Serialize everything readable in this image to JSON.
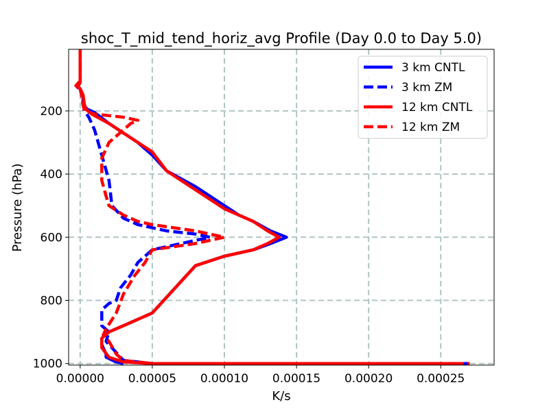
{
  "chart_data": {
    "type": "line",
    "title": "shoc_T_mid_tend_horiz_avg Profile (Day 0.0 to Day 5.0)",
    "xlabel": "K/s",
    "ylabel": "Pressure (hPa)",
    "xlim": [
      -8e-06,
      0.000287
    ],
    "ylim": [
      1005,
      5
    ],
    "y_inverted": true,
    "grid": true,
    "legend_position": "upper right",
    "x_ticks": [
      0,
      5e-05,
      0.0001,
      0.00015,
      0.0002,
      0.00025
    ],
    "x_tick_labels": [
      "0.00000",
      "0.00005",
      "0.00010",
      "0.00015",
      "0.00020",
      "0.00025"
    ],
    "y_ticks": [
      200,
      400,
      600,
      800,
      1000
    ],
    "y_tick_labels": [
      "200",
      "400",
      "600",
      "800",
      "1000"
    ],
    "series": [
      {
        "name": "3 km CNTL",
        "color": "#0000ff",
        "style": "solid",
        "x": [
          0.0,
          0.0,
          0.0,
          -2e-06,
          0.0,
          1e-06,
          2e-06,
          2e-06,
          5e-06,
          1e-05,
          2e-05,
          4e-05,
          5e-05,
          6e-05,
          8e-05,
          0.0001,
          0.00011,
          0.00012,
          0.000124,
          0.000132,
          0.000143,
          0.000132,
          0.00012,
          0.0001,
          8e-05,
          7e-05,
          6e-05,
          5e-05,
          3e-05,
          2e-05,
          1.5e-05,
          1.5e-05,
          1.8e-05,
          1.8e-05,
          2.5e-05,
          3e-05
        ],
        "y": [
          5,
          60,
          110,
          125,
          130,
          140,
          150,
          180,
          195,
          205,
          240,
          300,
          340,
          390,
          440,
          500,
          530,
          550,
          560,
          580,
          600,
          620,
          640,
          660,
          690,
          740,
          790,
          840,
          880,
          900,
          920,
          940,
          970,
          980,
          995,
          1000
        ]
      },
      {
        "name": "3 km ZM",
        "color": "#0000ff",
        "style": "dashed",
        "x": [
          0.0,
          0.0,
          0.0,
          -2e-06,
          0.0,
          1e-06,
          2e-06,
          3e-06,
          6e-06,
          1e-05,
          2e-05,
          2.2e-05,
          3e-05,
          4e-05,
          6e-05,
          8e-05,
          9e-05,
          8e-05,
          5e-05,
          4e-05,
          3.5e-05,
          2.8e-05,
          2.5e-05,
          2e-05,
          1.5e-05,
          1.5e-05,
          2e-05,
          1.8e-05,
          3e-05,
          5e-05,
          0.0001,
          0.00015,
          0.00027
        ],
        "y": [
          5,
          60,
          110,
          125,
          130,
          150,
          180,
          200,
          220,
          260,
          420,
          500,
          540,
          560,
          580,
          590,
          600,
          610,
          640,
          680,
          720,
          760,
          800,
          810,
          830,
          880,
          900,
          930,
          990,
          1000,
          1000,
          1000,
          1000
        ]
      },
      {
        "name": "12 km CNTL",
        "color": "#ff0000",
        "style": "solid",
        "x": [
          0.0,
          0.0,
          0.0,
          -3e-06,
          0.0,
          2e-06,
          3e-06,
          4e-06,
          8e-06,
          2e-05,
          3e-05,
          4e-05,
          5e-05,
          6e-05,
          8e-05,
          0.0001,
          0.00012,
          0.00013,
          0.000138,
          0.00013,
          0.00012,
          0.0001,
          8e-05,
          7e-05,
          6e-05,
          5e-05,
          3e-05,
          2e-05,
          1.5e-05,
          1.5e-05,
          2e-05,
          3e-05,
          5e-05,
          0.0001,
          0.00015,
          0.000265
        ],
        "y": [
          5,
          60,
          105,
          120,
          130,
          150,
          180,
          195,
          210,
          240,
          270,
          300,
          330,
          390,
          450,
          510,
          550,
          580,
          600,
          620,
          640,
          660,
          690,
          740,
          790,
          840,
          880,
          900,
          920,
          950,
          980,
          995,
          1000,
          1000,
          1000,
          1000
        ]
      },
      {
        "name": "12 km ZM",
        "color": "#ff0000",
        "style": "dashed",
        "x": [
          0.0,
          0.0,
          0.0,
          -2e-06,
          0.0,
          1e-06,
          2e-06,
          3e-06,
          1e-05,
          2e-05,
          3e-05,
          4e-05,
          3.5e-05,
          3e-05,
          2e-05,
          1.5e-05,
          1.5e-05,
          1.8e-05,
          2e-05,
          3e-05,
          4e-05,
          5e-05,
          8e-05,
          0.0001,
          8e-05,
          5e-05,
          4.5e-05,
          3.8e-05,
          3e-05,
          2.5e-05,
          1.8e-05,
          1.6e-05,
          2e-05,
          2.5e-05,
          3e-05,
          5e-05,
          0.0001,
          0.00015,
          0.00027
        ],
        "y": [
          5,
          60,
          110,
          125,
          130,
          150,
          180,
          200,
          210,
          215,
          220,
          230,
          240,
          260,
          300,
          350,
          420,
          470,
          500,
          530,
          550,
          560,
          580,
          600,
          620,
          640,
          680,
          720,
          780,
          840,
          890,
          910,
          930,
          970,
          990,
          1000,
          1000,
          1000,
          1000
        ]
      }
    ]
  }
}
